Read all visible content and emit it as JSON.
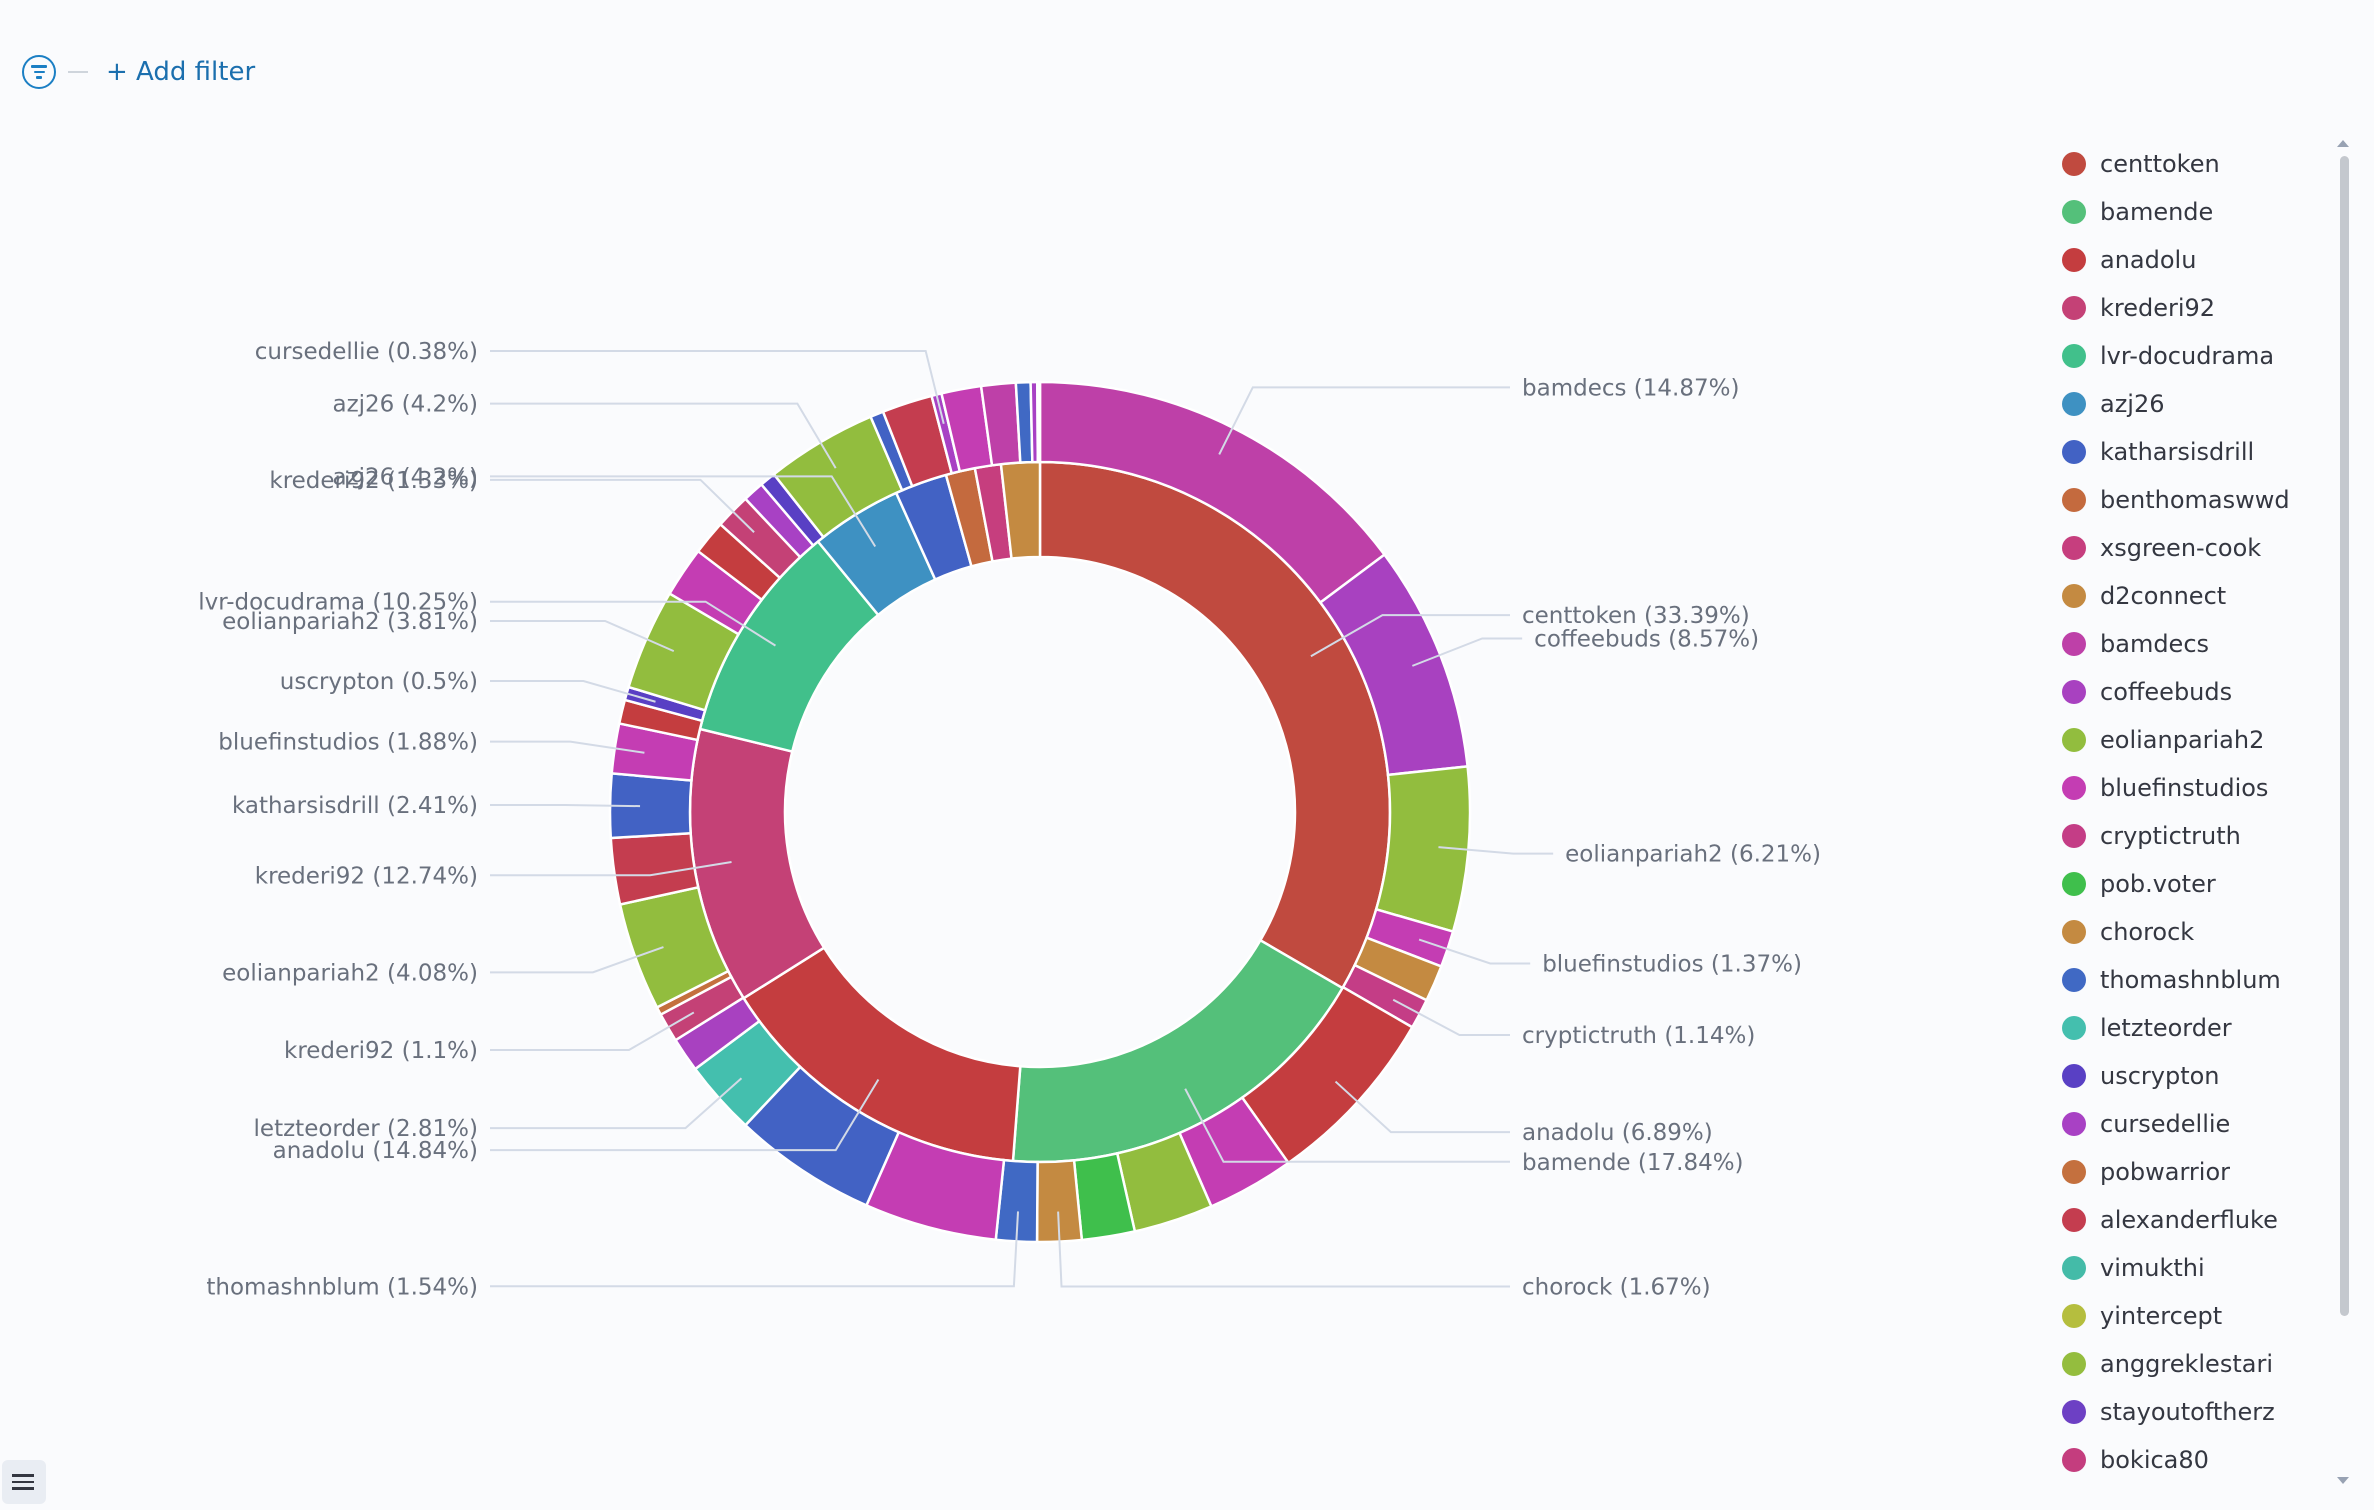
{
  "filter_bar": {
    "add_filter_label": "+ Add filter",
    "icon": "filter-icon"
  },
  "colors": {
    "bamdecs": "#be40a8",
    "coffeebuds": "#a841c0",
    "eolianpariah2": "#92bd3e",
    "bluefinstudios": "#c43db3",
    "d2connect": "#c48a41",
    "xsgreen-cook": "#c63e7e",
    "anadolu": "#c43d3f",
    "bamende": "#54c07a",
    "vimukthi": "#44bba8",
    "pob.voter": "#3fbf4c",
    "thomashnblum": "#4069c4",
    "centtoken": "#c04a3f",
    "azj26": "#3e91c2",
    "katharsisdrill": "#4262c4",
    "benthomaswwd": "#c46a3e",
    "krederi92": "#c44176",
    "lvr-docudrama": "#41c08b",
    "chorock": "#c48a41",
    "letzteorder": "#44bfae",
    "uscrypton": "#5940c4",
    "cursedellie": "#a841c4",
    "cryptictruth": "#c43d86",
    "alexanderfluke": "#c43d4f",
    "pobwarrior": "#c4703e",
    "yintercept": "#b5be3e",
    "anggreklestari": "#94bd3e",
    "stayoutoftherz": "#6d40c4",
    "bokica80": "#c43d7e"
  },
  "chart_data": {
    "type": "pie",
    "donut": true,
    "rings": [
      {
        "name": "inner",
        "slices": [
          {
            "label": "centtoken",
            "percent": 33.39,
            "color": "#c04a3f",
            "labeled": true
          },
          {
            "label": "bamende",
            "percent": 17.84,
            "color": "#54c07a",
            "labeled": true
          },
          {
            "label": "anadolu",
            "percent": 14.84,
            "color": "#c43d3f",
            "labeled": true
          },
          {
            "label": "krederi92",
            "percent": 12.74,
            "color": "#c44176",
            "labeled": true
          },
          {
            "label": "lvr-docudrama",
            "percent": 10.25,
            "color": "#41c08b",
            "labeled": true
          },
          {
            "label": "azj26",
            "percent": 4.2,
            "color": "#3e91c2",
            "labeled": true
          },
          {
            "label": "katharsisdrill",
            "percent": 2.41,
            "color": "#4262c4",
            "labeled": false
          },
          {
            "label": "benthomaswwd",
            "percent": 1.35,
            "color": "#c46a3e",
            "labeled": false
          },
          {
            "label": "xsgreen-cook",
            "percent": 1.2,
            "color": "#c63e7e",
            "labeled": false
          },
          {
            "label": "d2connect",
            "percent": 1.78,
            "color": "#c48a41",
            "labeled": false
          }
        ]
      },
      {
        "name": "outer",
        "slices": [
          {
            "label": "bamdecs",
            "percent": 14.87,
            "color": "#be40a8",
            "labeled": true
          },
          {
            "label": "coffeebuds",
            "percent": 8.57,
            "color": "#a841c0",
            "labeled": true
          },
          {
            "label": "eolianpariah2",
            "percent": 6.21,
            "color": "#92bd3e",
            "labeled": true
          },
          {
            "label": "bluefinstudios",
            "percent": 1.37,
            "color": "#c43db3",
            "labeled": true
          },
          {
            "label": "d2connect",
            "percent": 1.37,
            "color": "#c48a41",
            "labeled": false
          },
          {
            "label": "cryptictruth",
            "percent": 1.14,
            "color": "#c43d86",
            "labeled": true
          },
          {
            "label": "anadolu",
            "percent": 6.89,
            "color": "#c43d3f",
            "labeled": true
          },
          {
            "label": "bluefinstudios",
            "percent": 3.3,
            "color": "#c43db3",
            "labeled": false
          },
          {
            "label": "eolianpariah2",
            "percent": 3.0,
            "color": "#92bd3e",
            "labeled": false
          },
          {
            "label": "pob.voter",
            "percent": 2.0,
            "color": "#3fbf4c",
            "labeled": false
          },
          {
            "label": "chorock",
            "percent": 1.67,
            "color": "#c48a41",
            "labeled": true
          },
          {
            "label": "thomashnblum",
            "percent": 1.54,
            "color": "#4069c4",
            "labeled": true
          },
          {
            "label": "bluefinstudios",
            "percent": 5.0,
            "color": "#c43db3",
            "labeled": false
          },
          {
            "label": "katharsisdrill",
            "percent": 5.43,
            "color": "#4262c4",
            "labeled": false
          },
          {
            "label": "letzteorder",
            "percent": 2.81,
            "color": "#44bfae",
            "labeled": true
          },
          {
            "label": "coffeebuds",
            "percent": 1.3,
            "color": "#a841c0",
            "labeled": false
          },
          {
            "label": "krederi92",
            "percent": 1.1,
            "color": "#c44176",
            "labeled": true
          },
          {
            "label": "pobwarrior",
            "percent": 0.3,
            "color": "#c4703e",
            "labeled": false
          },
          {
            "label": "eolianpariah2",
            "percent": 4.08,
            "color": "#92bd3e",
            "labeled": true
          },
          {
            "label": "alexanderfluke",
            "percent": 2.5,
            "color": "#c43d4f",
            "labeled": false
          },
          {
            "label": "katharsisdrill",
            "percent": 2.41,
            "color": "#4262c4",
            "labeled": true
          },
          {
            "label": "bluefinstudios",
            "percent": 1.88,
            "color": "#c43db3",
            "labeled": true
          },
          {
            "label": "anadolu",
            "percent": 0.9,
            "color": "#c43d3f",
            "labeled": false
          },
          {
            "label": "uscrypton",
            "percent": 0.5,
            "color": "#5940c4",
            "labeled": true
          },
          {
            "label": "eolianpariah2",
            "percent": 3.81,
            "color": "#92bd3e",
            "labeled": true
          },
          {
            "label": "bluefinstudios",
            "percent": 1.9,
            "color": "#c43db3",
            "labeled": false
          },
          {
            "label": "lvr-docudrama",
            "percent": 1.3,
            "color": "#c43d3f",
            "labeled": false
          },
          {
            "label": "krederi92",
            "percent": 1.33,
            "color": "#c44176",
            "labeled": true
          },
          {
            "label": "cursedellie",
            "percent": 0.8,
            "color": "#a841c4",
            "labeled": false
          },
          {
            "label": "uscrypton",
            "percent": 0.6,
            "color": "#5940c4",
            "labeled": false
          },
          {
            "label": "azj26",
            "percent": 4.2,
            "color": "#92bd3e",
            "labeled": true
          },
          {
            "label": "katharsisdrill",
            "percent": 0.5,
            "color": "#4262c4",
            "labeled": false
          },
          {
            "label": "anadolu",
            "percent": 1.9,
            "color": "#c43d4f",
            "labeled": false
          },
          {
            "label": "cursedellie",
            "percent": 0.38,
            "color": "#a841c4",
            "labeled": true
          },
          {
            "label": "bluefinstudios",
            "percent": 1.5,
            "color": "#c43db3",
            "labeled": false
          },
          {
            "label": "bamdecs",
            "percent": 1.3,
            "color": "#be40a8",
            "labeled": false
          },
          {
            "label": "thomashnblum",
            "percent": 0.55,
            "color": "#4069c4",
            "labeled": false
          },
          {
            "label": "cursedellie",
            "percent": 0.25,
            "color": "#a841c4",
            "labeled": false
          },
          {
            "label": "coffeebuds",
            "percent": 0.1,
            "color": "#fafbfd",
            "labeled": false
          }
        ]
      }
    ],
    "slice_labels": [
      "cursedellie (0.38%)",
      "azj26 (4.2%)",
      "krederi92 (1.33%)",
      "lvr-docudrama (10.25%)",
      "eolianpariah2 (3.81%)",
      "uscrypton (0.5%)",
      "bluefinstudios (1.88%)",
      "katharsisdrill (2.41%)",
      "krederi92 (12.74%)",
      "eolianpariah2 (4.08%)",
      "krederi92 (1.1%)",
      "letzteorder (2.81%)",
      "anadolu (14.84%)",
      "thomashnblum (1.54%)",
      "bamdecs (14.87%)",
      "centtoken (33.39%)",
      "coffeebuds (8.57%)",
      "eolianpariah2 (6.21%)",
      "bluefinstudios (1.37%)",
      "cryptictruth (1.14%)",
      "anadolu (6.89%)",
      "bamende (17.84%)",
      "chorock (1.67%)"
    ],
    "legend": {
      "position": "right",
      "items": [
        {
          "label": "centtoken",
          "color": "#c04a3f"
        },
        {
          "label": "bamende",
          "color": "#54c07a"
        },
        {
          "label": "anadolu",
          "color": "#c43d3f"
        },
        {
          "label": "krederi92",
          "color": "#c44176"
        },
        {
          "label": "lvr-docudrama",
          "color": "#41c08b"
        },
        {
          "label": "azj26",
          "color": "#3e91c2"
        },
        {
          "label": "katharsisdrill",
          "color": "#4262c4"
        },
        {
          "label": "benthomaswwd",
          "color": "#c46a3e"
        },
        {
          "label": "xsgreen-cook",
          "color": "#c63e7e"
        },
        {
          "label": "d2connect",
          "color": "#c48a41"
        },
        {
          "label": "bamdecs",
          "color": "#be40a8"
        },
        {
          "label": "coffeebuds",
          "color": "#a841c0"
        },
        {
          "label": "eolianpariah2",
          "color": "#92bd3e"
        },
        {
          "label": "bluefinstudios",
          "color": "#c43db3"
        },
        {
          "label": "cryptictruth",
          "color": "#c43d86"
        },
        {
          "label": "pob.voter",
          "color": "#3fbf4c"
        },
        {
          "label": "chorock",
          "color": "#c48a41"
        },
        {
          "label": "thomashnblum",
          "color": "#4069c4"
        },
        {
          "label": "letzteorder",
          "color": "#44bfae"
        },
        {
          "label": "uscrypton",
          "color": "#5940c4"
        },
        {
          "label": "cursedellie",
          "color": "#a841c4"
        },
        {
          "label": "pobwarrior",
          "color": "#c4703e"
        },
        {
          "label": "alexanderfluke",
          "color": "#c43d4f"
        },
        {
          "label": "vimukthi",
          "color": "#44bba8"
        },
        {
          "label": "yintercept",
          "color": "#b5be3e"
        },
        {
          "label": "anggreklestari",
          "color": "#94bd3e"
        },
        {
          "label": "stayoutoftherz",
          "color": "#6d40c4"
        },
        {
          "label": "bokica80",
          "color": "#c43d7e"
        }
      ]
    }
  }
}
